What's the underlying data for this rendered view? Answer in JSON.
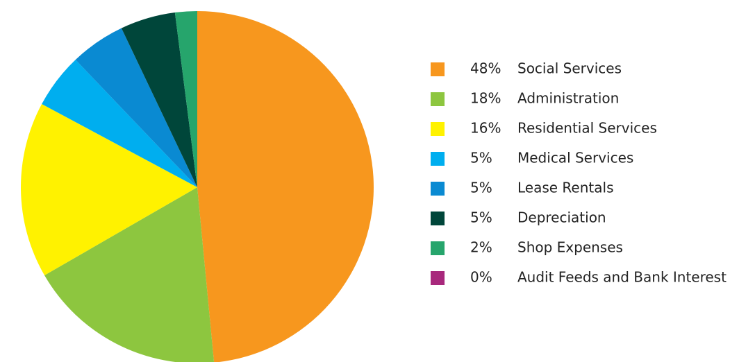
{
  "chart_data": {
    "type": "pie",
    "categories": [
      "Social Services",
      "Administration",
      "Residential Services",
      "Medical Services",
      "Lease Rentals",
      "Depreciation",
      "Shop Expenses",
      "Audit Feeds and Bank Interest"
    ],
    "values": [
      48,
      18,
      16,
      5,
      5,
      5,
      2,
      0
    ],
    "value_labels": [
      "48%",
      "18%",
      "16%",
      "5%",
      "5%",
      "5%",
      "2%",
      "0%"
    ],
    "colors": [
      "#f7971e",
      "#8dc63f",
      "#fff200",
      "#00aeef",
      "#0a8ad2",
      "#00463a",
      "#26a56c",
      "#a8287c"
    ],
    "legend": "right"
  }
}
